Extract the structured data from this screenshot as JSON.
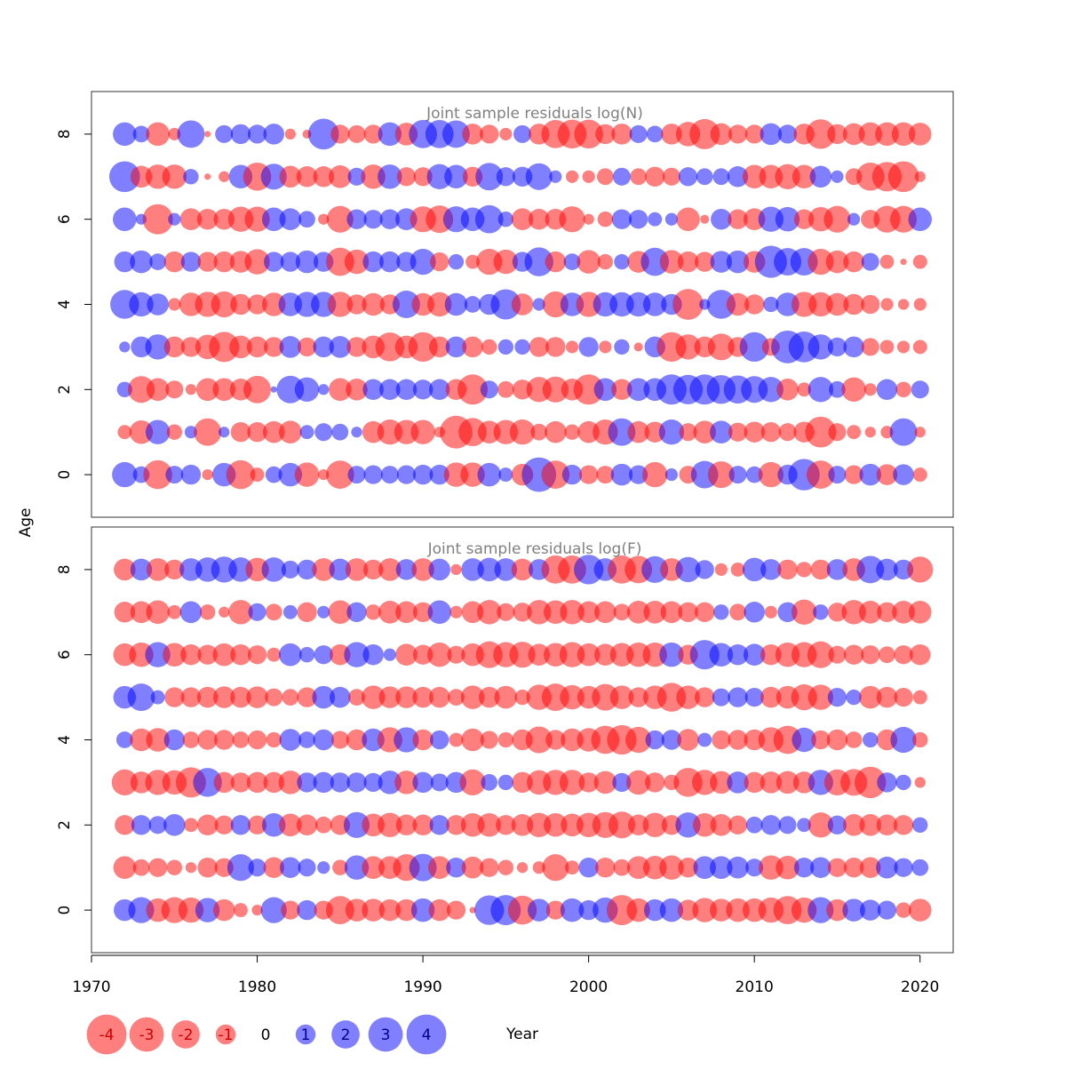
{
  "chart_data": {
    "type": "scatter",
    "subtype": "bubble",
    "xlabel": "Year",
    "ylabel": "Age",
    "xlim": [
      1970,
      2022
    ],
    "ylim": [
      -1,
      9
    ],
    "x_ticks": [
      1970,
      1980,
      1990,
      2000,
      2010,
      2020
    ],
    "y_ticks": [
      0,
      2,
      4,
      6,
      8
    ],
    "colors": {
      "negative": "#ff0000",
      "positive": "#0000ff",
      "opacity": 0.5
    },
    "legend": {
      "placement": "bottom-left",
      "values": [
        -4,
        -3,
        -2,
        -1,
        0,
        1,
        2,
        3,
        4
      ],
      "labels": [
        "-4",
        "-3",
        "-2",
        "-1",
        "0",
        "1",
        "2",
        "3",
        "4"
      ]
    },
    "years": [
      1972,
      1973,
      1974,
      1975,
      1976,
      1977,
      1978,
      1979,
      1980,
      1981,
      1982,
      1983,
      1984,
      1985,
      1986,
      1987,
      1988,
      1989,
      1990,
      1991,
      1992,
      1993,
      1994,
      1995,
      1996,
      1997,
      1998,
      1999,
      2000,
      2001,
      2002,
      2003,
      2004,
      2005,
      2006,
      2007,
      2008,
      2009,
      2010,
      2011,
      2012,
      2013,
      2014,
      2015,
      2016,
      2017,
      2018,
      2019,
      2020
    ],
    "ages": [
      0,
      1,
      2,
      3,
      4,
      5,
      6,
      7,
      8
    ],
    "panels": [
      {
        "title": "Joint sample residuals log(N)",
        "residuals": [
          [
            1.6,
            0.7,
            -2.1,
            0.8,
            1.0,
            -0.3,
            1.4,
            -2.1,
            -0.5,
            0.7,
            1.4,
            -1.5,
            -0.3,
            -2.0,
            0.8,
            0.9,
            0.8,
            0.9,
            1.0,
            1.0,
            -1.5,
            -1.5,
            1.4,
            0.5,
            -1.2,
            3.0,
            -2.0,
            1.0,
            -0.9,
            -0.8,
            1.2,
            0.9,
            -1.6,
            0.4,
            -0.8,
            1.9,
            -1.8,
            0.8,
            0.7,
            -1.6,
            1.0,
            2.5,
            -2.0,
            0.8,
            -0.9,
            1.2,
            -1.1,
            1.1,
            -0.5
          ],
          [
            -0.5,
            -1.4,
            1.5,
            -0.6,
            0.4,
            -1.9,
            0.3,
            -1.0,
            -1.0,
            -1.2,
            -1.3,
            0.5,
            0.8,
            0.7,
            0.3,
            -1.2,
            -1.6,
            -1.5,
            -1.5,
            -0.3,
            -2.7,
            -2.0,
            -1.3,
            -1.5,
            -1.6,
            -0.7,
            -1.2,
            -0.6,
            -1.2,
            -1.6,
            1.9,
            -1.2,
            -1.1,
            1.6,
            -0.8,
            -1.3,
            1.3,
            -0.9,
            -1.1,
            -1.0,
            -0.8,
            -1.1,
            -2.4,
            -0.8,
            -0.5,
            -0.3,
            -0.4,
            1.9,
            -0.3
          ],
          [
            0.6,
            -1.8,
            -1.3,
            -0.8,
            -0.3,
            -1.3,
            -1.3,
            -1.2,
            -1.9,
            0.1,
            1.9,
            1.5,
            0.3,
            -1.3,
            -1.2,
            1.1,
            1.1,
            1.1,
            1.0,
            1.1,
            -1.1,
            -2.3,
            0.8,
            -0.7,
            -1.0,
            -1.6,
            -1.7,
            -1.2,
            -2.3,
            1.3,
            -1.1,
            1.3,
            1.3,
            2.3,
            2.2,
            2.3,
            2.1,
            2.0,
            1.8,
            1.6,
            -1.2,
            -0.5,
            1.6,
            0.7,
            -1.5,
            -0.4,
            1.1,
            -0.6,
            0.8
          ],
          [
            0.3,
            1.1,
            1.6,
            -1.1,
            -1.0,
            -1.5,
            -2.3,
            -1.3,
            -1.1,
            -1.0,
            1.2,
            -0.9,
            1.1,
            1.2,
            -1.0,
            -1.3,
            -2.1,
            -1.3,
            -2.2,
            -1.1,
            1.1,
            -1.1,
            -0.6,
            0.6,
            0.6,
            -1.0,
            -1.0,
            -0.4,
            1.0,
            -0.4,
            0.6,
            -0.2,
            1.1,
            -2.2,
            -1.6,
            -1.1,
            -1.8,
            -1.0,
            2.2,
            -0.8,
            2.7,
            2.4,
            1.6,
            0.9,
            1.1,
            -0.8,
            -0.5,
            -0.4,
            -0.5
          ],
          [
            2.1,
            1.5,
            1.2,
            -0.4,
            -1.4,
            -1.6,
            -1.7,
            -1.1,
            -1.0,
            -1.4,
            1.4,
            1.6,
            1.6,
            -1.6,
            -1.0,
            -1.3,
            -1.0,
            1.9,
            -1.3,
            -1.5,
            1.3,
            0.7,
            1.1,
            2.3,
            -1.2,
            0.4,
            -1.7,
            1.4,
            -1.6,
            1.5,
            1.5,
            1.5,
            1.4,
            1.1,
            -2.4,
            0.3,
            2.1,
            -1.3,
            -1.0,
            0.6,
            1.4,
            -1.6,
            -1.5,
            -1.3,
            -1.1,
            -0.9,
            -0.4,
            -0.3,
            -0.4
          ],
          [
            1.1,
            1.3,
            0.7,
            -1.1,
            1.0,
            -1.0,
            -1.1,
            -1.2,
            -1.6,
            1.0,
            1.0,
            1.3,
            1.0,
            -2.0,
            -1.5,
            1.1,
            1.1,
            1.0,
            1.7,
            -0.9,
            0.6,
            -0.5,
            -1.7,
            -1.5,
            1.0,
            2.1,
            -1.1,
            0.7,
            -1.4,
            -0.6,
            0.6,
            -1.2,
            2.0,
            -1.4,
            -1.1,
            -1.0,
            1.2,
            1.3,
            -1.2,
            2.6,
            1.9,
            1.9,
            -1.7,
            -1.3,
            -1.1,
            0.8,
            -0.5,
            -0.1,
            -0.5
          ],
          [
            1.4,
            0.3,
            -2.3,
            0.4,
            -1.2,
            -1.1,
            -1.1,
            -1.6,
            -1.6,
            1.4,
            1.2,
            0.7,
            -0.3,
            -1.8,
            1.0,
            0.9,
            1.0,
            1.2,
            -1.7,
            -1.9,
            1.7,
            1.4,
            2.0,
            0.6,
            -1.2,
            -1.1,
            -1.1,
            -1.7,
            -0.3,
            -0.6,
            1.0,
            0.9,
            0.5,
            0.4,
            -1.4,
            -0.2,
            1.1,
            -1.0,
            -1.2,
            1.6,
            1.5,
            -1.0,
            -1.5,
            -1.8,
            0.4,
            -0.9,
            -1.8,
            -1.8,
            1.4
          ],
          [
            2.4,
            -1.2,
            -1.5,
            -1.5,
            0.6,
            -0.1,
            -0.3,
            1.4,
            -2.0,
            1.7,
            -1.2,
            -1.1,
            -1.1,
            -1.3,
            0.8,
            -1.5,
            1.5,
            -0.9,
            -0.9,
            1.6,
            1.4,
            -1.0,
            1.9,
            0.9,
            1.0,
            1.8,
            0.4,
            -0.4,
            -0.4,
            -0.7,
            0.8,
            -0.7,
            -1.0,
            -0.8,
            0.9,
            0.7,
            0.7,
            1.1,
            -1.4,
            -1.4,
            -1.6,
            -1.4,
            1.2,
            0.4,
            -0.7,
            -2.0,
            -2.2,
            -2.4,
            -0.3
          ],
          [
            1.4,
            0.7,
            -1.4,
            -0.4,
            1.9,
            -0.1,
            0.8,
            1.0,
            0.9,
            1.1,
            -0.3,
            -0.2,
            2.4,
            -0.9,
            -0.8,
            -0.9,
            1.4,
            -1.3,
            2.0,
            2.0,
            1.9,
            -1.1,
            -0.9,
            -0.4,
            0.8,
            -1.1,
            -2.0,
            -2.1,
            -2.1,
            -1.0,
            -1.1,
            0.8,
            0.7,
            -1.1,
            -1.5,
            -2.3,
            -1.2,
            -0.9,
            -0.9,
            1.2,
            0.9,
            -1.1,
            -2.2,
            -1.0,
            -1.2,
            -1.4,
            -1.4,
            -1.4,
            -1.3
          ]
        ]
      },
      {
        "title": "Joint sample residuals log(F)",
        "residuals": [
          [
            1.2,
            1.7,
            -1.4,
            -1.7,
            -1.6,
            1.5,
            -1.2,
            -0.5,
            -0.3,
            1.7,
            -0.9,
            1.0,
            -0.9,
            -2.0,
            -1.3,
            -1.3,
            -1.2,
            -1.2,
            1.4,
            -1.2,
            -0.9,
            -0.1,
            2.2,
            2.3,
            -2.1,
            1.3,
            -0.9,
            1.4,
            1.0,
            1.6,
            -2.3,
            -1.4,
            1.2,
            1.4,
            -1.1,
            -1.5,
            -1.3,
            -1.4,
            -1.4,
            -1.6,
            -2.0,
            -1.6,
            1.7,
            -1.2,
            1.3,
            1.1,
            0.9,
            -0.6,
            -1.3
          ],
          [
            -1.3,
            -0.7,
            -0.9,
            -0.6,
            -0.3,
            -1.0,
            -0.9,
            1.8,
            0.8,
            -1.1,
            1.1,
            0.8,
            0.4,
            -0.6,
            1.5,
            -1.3,
            -1.3,
            -1.8,
            1.9,
            -1.3,
            1.0,
            -1.2,
            -0.9,
            -0.6,
            -0.3,
            -0.4,
            -1.8,
            -0.5,
            1.0,
            -1.0,
            -0.7,
            -1.3,
            -1.4,
            -1.5,
            -1.0,
            1.3,
            1.3,
            1.2,
            0.8,
            -1.5,
            -1.4,
            1.0,
            1.1,
            -0.9,
            -1.0,
            -1.1,
            1.2,
            0.9,
            0.7
          ],
          [
            -1.0,
            1.0,
            0.8,
            1.2,
            -0.5,
            -1.1,
            -0.9,
            1.0,
            -0.9,
            1.4,
            -1.3,
            -1.1,
            -0.7,
            -1.0,
            1.7,
            -1.3,
            -1.5,
            -1.1,
            -1.1,
            1.0,
            -1.0,
            -1.4,
            -1.4,
            -1.0,
            -1.2,
            -1.5,
            -1.4,
            -1.3,
            -1.5,
            -1.7,
            -1.8,
            -1.1,
            -1.5,
            -1.0,
            1.6,
            -1.4,
            -1.2,
            -0.9,
            0.7,
            1.0,
            0.8,
            0.5,
            -1.6,
            0.9,
            -1.2,
            -1.2,
            -1.1,
            -1.0,
            0.6
          ],
          [
            -1.7,
            -1.2,
            -1.6,
            -1.5,
            -2.3,
            2.1,
            -1.1,
            -1.0,
            -1.1,
            -1.1,
            -1.4,
            1.0,
            1.1,
            1.0,
            1.0,
            0.9,
            1.4,
            -1.4,
            1.1,
            0.8,
            1.1,
            -1.7,
            0.7,
            0.6,
            -1.1,
            -1.5,
            -1.6,
            -1.6,
            -1.0,
            -1.3,
            0.9,
            -1.5,
            -1.0,
            -0.6,
            -2.1,
            -1.6,
            -1.3,
            1.2,
            -1.1,
            -1.2,
            -1.3,
            -1.2,
            1.6,
            -1.7,
            -1.8,
            -2.5,
            1.0,
            0.6,
            -0.3
          ],
          [
            0.7,
            -1.3,
            -1.4,
            1.1,
            -0.7,
            -1.0,
            -1.0,
            -0.7,
            -0.9,
            -0.6,
            1.2,
            0.7,
            1.1,
            -0.8,
            -1.1,
            1.3,
            -1.6,
            1.6,
            -1.1,
            0.9,
            -0.5,
            -1.3,
            -0.8,
            -0.6,
            -1.1,
            -1.8,
            -1.0,
            -1.3,
            -1.4,
            -2.0,
            -2.2,
            -1.7,
            0.9,
            1.0,
            -1.2,
            0.5,
            -0.9,
            -1.0,
            -1.1,
            -1.6,
            -2.0,
            1.5,
            -0.9,
            -1.1,
            -0.7,
            0.6,
            -1.1,
            1.7,
            -0.6
          ],
          [
            1.3,
            1.9,
            0.5,
            -1.0,
            -1.0,
            -1.1,
            -1.2,
            -1.1,
            -1.2,
            -0.8,
            -0.7,
            -1.0,
            1.3,
            1.1,
            -0.7,
            -1.4,
            -1.2,
            -1.2,
            -1.1,
            -1.1,
            -0.7,
            -1.4,
            -1.1,
            -1.3,
            -0.6,
            -1.6,
            -1.9,
            -1.5,
            -1.3,
            -1.8,
            -1.4,
            -1.0,
            -1.4,
            -2.1,
            -1.4,
            -1.0,
            0.8,
            1.0,
            0.9,
            -1.1,
            -1.3,
            -1.7,
            -1.6,
            0.9,
            0.6,
            -1.3,
            -1.1,
            -0.9,
            -0.5
          ],
          [
            -1.3,
            -1.5,
            1.6,
            -1.4,
            -1.1,
            -1.0,
            -1.3,
            -1.1,
            -0.9,
            -0.5,
            1.3,
            0.6,
            0.9,
            -1.1,
            1.6,
            1.1,
            0.4,
            -1.2,
            -1.0,
            -1.5,
            -0.8,
            -1.3,
            -1.8,
            -1.6,
            -1.7,
            -1.2,
            -1.4,
            -1.6,
            -1.3,
            -1.2,
            -1.4,
            -1.5,
            -1.5,
            1.5,
            -1.0,
            2.2,
            1.4,
            1.1,
            1.2,
            -1.1,
            -1.5,
            -1.6,
            -1.8,
            -0.8,
            -1.0,
            -0.9,
            -0.7,
            -0.9,
            -1.1
          ],
          [
            -1.1,
            -1.2,
            -1.4,
            -0.5,
            1.2,
            -0.6,
            -0.3,
            -1.5,
            0.8,
            -0.7,
            0.5,
            -1.0,
            0.4,
            -1.4,
            1.0,
            -0.6,
            -1.3,
            -1.2,
            -1.0,
            1.4,
            -0.4,
            -1.2,
            -1.5,
            -0.8,
            -0.9,
            -1.5,
            -1.4,
            -1.5,
            -1.2,
            -1.2,
            -0.7,
            -1.3,
            -1.3,
            -1.2,
            -1.0,
            -1.0,
            0.6,
            -0.7,
            1.1,
            -0.4,
            1.0,
            -1.6,
            0.6,
            -0.9,
            -1.5,
            -1.3,
            -1.0,
            -1.3,
            -1.3
          ],
          [
            -1.2,
            1.2,
            -1.3,
            -1.0,
            1.3,
            1.5,
            1.7,
            1.5,
            -1.4,
            1.5,
            0.8,
            1.0,
            -1.3,
            1.2,
            -1.3,
            -1.0,
            -1.3,
            1.1,
            -1.3,
            1.2,
            -0.3,
            1.3,
            1.4,
            1.3,
            -1.2,
            1.1,
            -2.0,
            -2.0,
            2.2,
            1.3,
            -2.0,
            -1.9,
            1.8,
            -1.3,
            1.6,
            0.9,
            -0.4,
            -0.5,
            1.4,
            1.1,
            -1.0,
            -0.6,
            -1.0,
            1.1,
            -1.3,
            1.9,
            1.2,
            1.0,
            -1.7
          ]
        ]
      }
    ]
  }
}
